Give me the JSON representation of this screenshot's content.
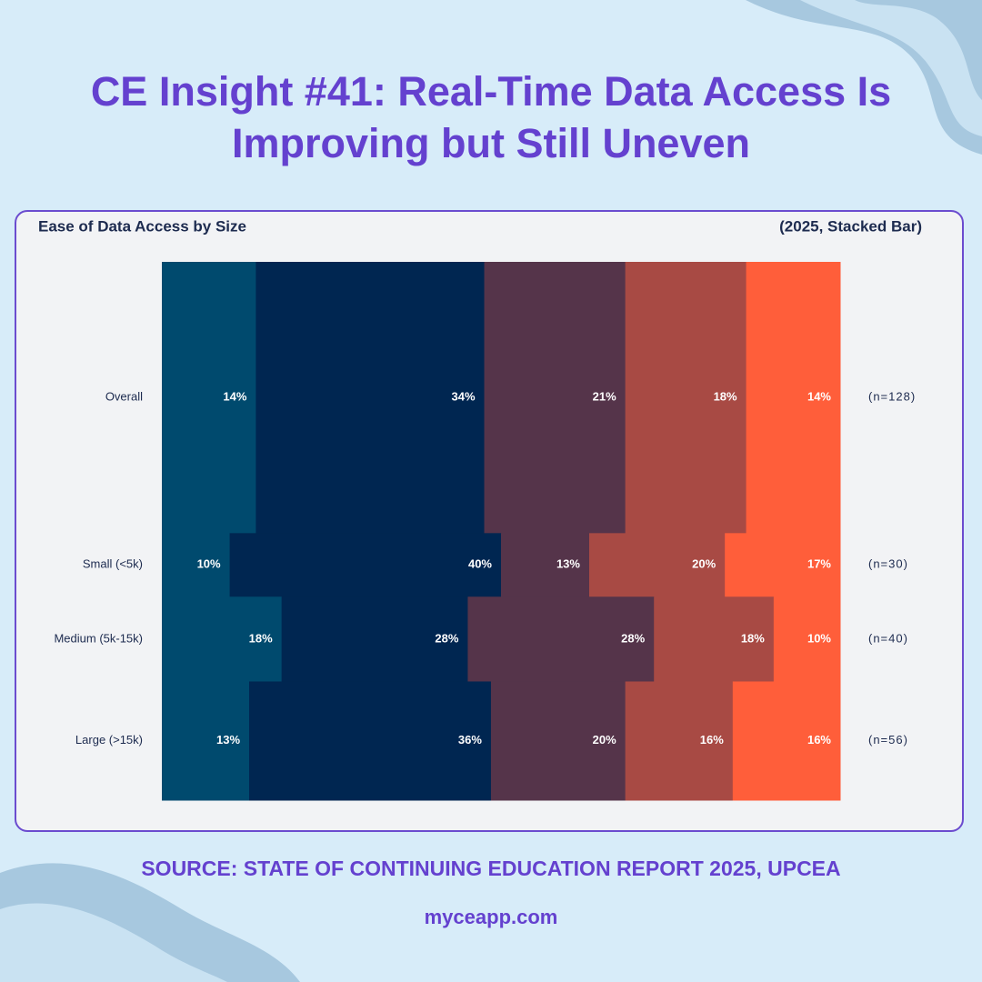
{
  "title": "CE Insight #41: Real-Time Data Access Is Improving but Still Uneven",
  "chart_data": {
    "type": "bar",
    "title": "Ease of Data Access by Size",
    "subtitle": "(2025, Stacked Bar)",
    "categories": [
      "Overall",
      "Small (<5k)",
      "Medium (5k-15k)",
      "Large (>15k)"
    ],
    "n": [
      128,
      30,
      40,
      56
    ],
    "n_labels": [
      "(n=128)",
      "(n=30)",
      "(n=40)",
      "(n=56)"
    ],
    "series": [
      {
        "color": "#004a6e",
        "values": [
          14,
          10,
          18,
          13
        ],
        "value_labels": [
          "14%",
          "10%",
          "18%",
          "13%"
        ]
      },
      {
        "color": "#002651",
        "values": [
          34,
          40,
          28,
          36
        ],
        "value_labels": [
          "34%",
          "40%",
          "28%",
          "36%"
        ]
      },
      {
        "color": "#55344a",
        "values": [
          21,
          13,
          28,
          20
        ],
        "value_labels": [
          "21%",
          "13%",
          "28%",
          "20%"
        ]
      },
      {
        "color": "#a84a44",
        "values": [
          18,
          20,
          18,
          16
        ],
        "value_labels": [
          "18%",
          "20%",
          "18%",
          "16%"
        ]
      },
      {
        "color": "#ff5e3a",
        "values": [
          14,
          17,
          10,
          16
        ],
        "value_labels": [
          "14%",
          "17%",
          "10%",
          "16%"
        ]
      }
    ]
  },
  "source": "SOURCE: STATE OF CONTINUING EDUCATION REPORT 2025, UPCEA",
  "website": "myceapp.com"
}
